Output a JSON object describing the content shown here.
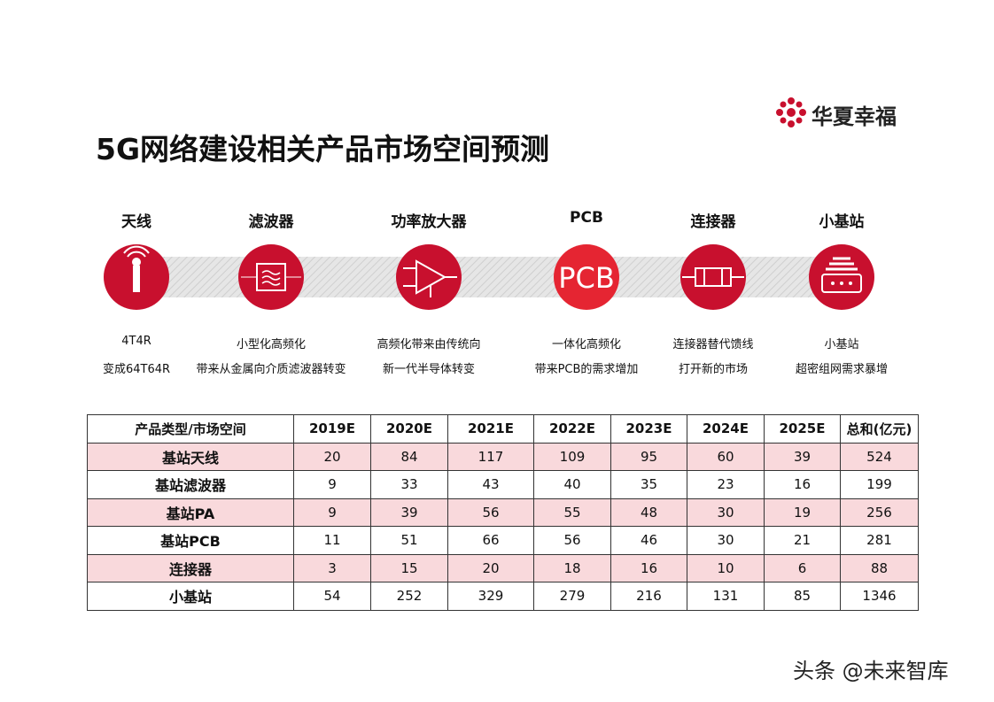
{
  "logo": "华夏幸福",
  "title": "5G网络建设相关产品市场空间预测",
  "products": [
    {
      "name": "天线",
      "desc": [
        "4T4R",
        "变成64T64R"
      ]
    },
    {
      "name": "滤波器",
      "desc": [
        "小型化高频化",
        "带来从金属向介质滤波器转变"
      ]
    },
    {
      "name": "功率放大器",
      "desc": [
        "高频化带来由传统向",
        "新一代半导体转变"
      ]
    },
    {
      "name": "PCB",
      "icon_label": "PCB",
      "desc": [
        "一体化高频化",
        "带来PCB的需求增加"
      ]
    },
    {
      "name": "连接器",
      "desc": [
        "连接器替代馈线",
        "打开新的市场"
      ]
    },
    {
      "name": "小基站",
      "desc": [
        "小基站",
        "超密组网需求暴增"
      ]
    }
  ],
  "table": {
    "header": [
      "产品类型/市场空间",
      "2019E",
      "2020E",
      "2021E",
      "2022E",
      "2023E",
      "2024E",
      "2025E",
      "总和(亿元)"
    ],
    "rows": [
      [
        "基站天线",
        20,
        84,
        117,
        109,
        95,
        60,
        39,
        524
      ],
      [
        "基站滤波器",
        9,
        33,
        43,
        40,
        35,
        23,
        16,
        199
      ],
      [
        "基站PA",
        9,
        39,
        56,
        55,
        48,
        30,
        19,
        256
      ],
      [
        "基站PCB",
        11,
        51,
        66,
        56,
        46,
        30,
        21,
        281
      ],
      [
        "连接器",
        3,
        15,
        20,
        18,
        16,
        10,
        6,
        88
      ],
      [
        "小基站",
        54,
        252,
        329,
        279,
        216,
        131,
        85,
        1346
      ]
    ]
  },
  "watermark": "头条 @未来智库"
}
